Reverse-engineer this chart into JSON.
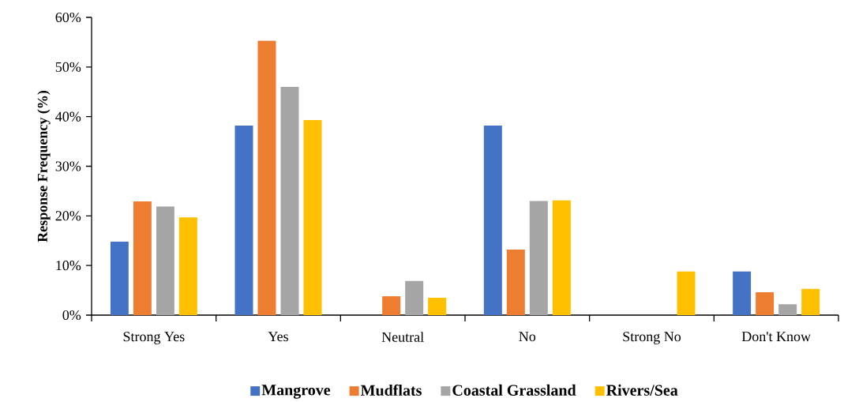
{
  "chart_data": {
    "type": "bar",
    "ylabel": "Response Frequency (%)",
    "categories": [
      "Strong Yes",
      "Yes",
      "Neutral",
      "No",
      "Strong No",
      "Don't Know"
    ],
    "series": [
      {
        "name": "Mangrove",
        "color": "#4472c4",
        "values": [
          14.8,
          38.2,
          0,
          38.2,
          0,
          8.8
        ]
      },
      {
        "name": "Mudflats",
        "color": "#ed7d31",
        "values": [
          22.9,
          55.3,
          3.8,
          13.2,
          0,
          4.6
        ]
      },
      {
        "name": "Coastal Grassland",
        "color": "#a5a5a5",
        "values": [
          21.9,
          46.0,
          6.9,
          23.0,
          0,
          2.2
        ]
      },
      {
        "name": "Rivers/Sea",
        "color": "#ffc000",
        "values": [
          19.7,
          39.3,
          3.5,
          23.1,
          8.8,
          5.3
        ]
      }
    ],
    "ylim": [
      0,
      60
    ],
    "yticks": [
      {
        "value": 0,
        "label": "0%"
      },
      {
        "value": 10,
        "label": "10%"
      },
      {
        "value": 20,
        "label": "20%"
      },
      {
        "value": 30,
        "label": "30%"
      },
      {
        "value": 40,
        "label": "40%"
      },
      {
        "value": 50,
        "label": "50%"
      },
      {
        "value": 60,
        "label": "60%"
      }
    ],
    "grid": false,
    "legend": "bottom"
  }
}
